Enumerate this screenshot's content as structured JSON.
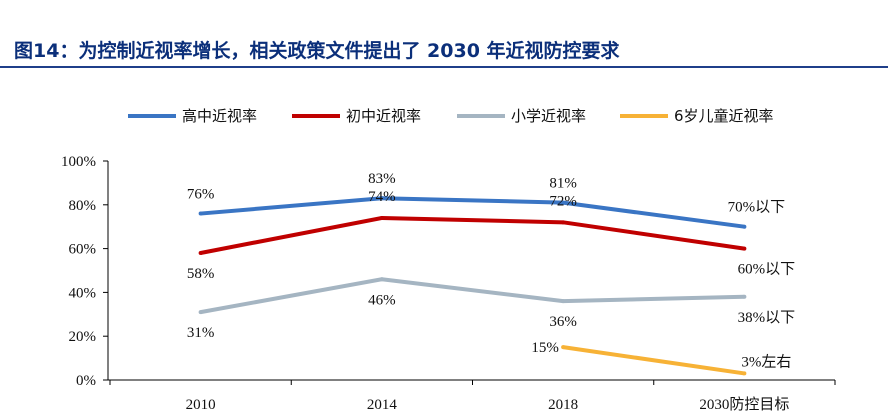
{
  "figure_title": "图14：为控制近视率增长，相关政策文件提出了 2030 年近视防控要求",
  "chart_data": {
    "type": "line",
    "title": "图14：为控制近视率增长，相关政策文件提出了 2030 年近视防控要求",
    "xlabel": "",
    "ylabel": "",
    "categories": [
      "2010",
      "2014",
      "2018",
      "2030防控目标"
    ],
    "ylim": [
      0,
      100
    ],
    "yticks": [
      "0%",
      "20%",
      "40%",
      "60%",
      "80%",
      "100%"
    ],
    "legend_position": "top",
    "grid": false,
    "series": [
      {
        "name": "高中近视率",
        "color": "#3a75c4",
        "values": [
          76,
          83,
          81,
          70
        ],
        "labels": [
          "76%",
          "83%",
          "81%",
          "70%以下"
        ]
      },
      {
        "name": "初中近视率",
        "color": "#c00000",
        "values": [
          58,
          74,
          72,
          60
        ],
        "labels": [
          "58%",
          "74%",
          "72%",
          "60%以下"
        ]
      },
      {
        "name": "小学近视率",
        "color": "#a5b5c2",
        "values": [
          31,
          46,
          36,
          38
        ],
        "labels": [
          "31%",
          "46%",
          "36%",
          "38%以下"
        ]
      },
      {
        "name": "6岁儿童近视率",
        "color": "#f7b236",
        "values": [
          null,
          null,
          15,
          3
        ],
        "labels": [
          null,
          null,
          "15%",
          "3%左右"
        ]
      }
    ]
  }
}
